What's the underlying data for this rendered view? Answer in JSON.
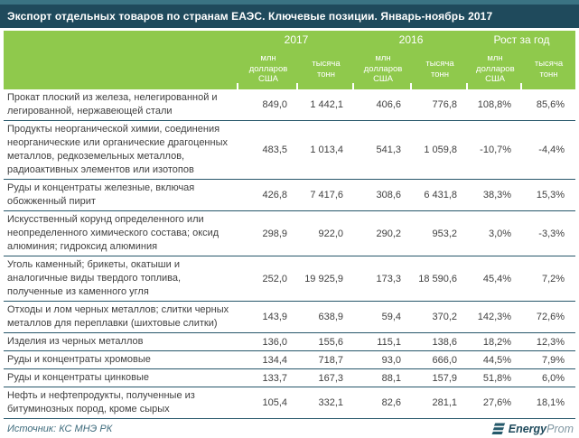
{
  "title": "Экспорт отдельных товаров по странам ЕАЭС. Ключевые позиции. Январь-ноябрь 2017",
  "colors": {
    "title_bar": "#1F4A5C",
    "top_strip": "#3A7383",
    "header_green": "#8FC94C",
    "row_line": "#26566A",
    "body_text": "#3F3F3F",
    "source_text": "#3E6B7C",
    "logo_teal": "#25596B",
    "logo_gray": "#8097A2"
  },
  "chart_data": {
    "type": "table",
    "title": "Экспорт отдельных товаров по странам ЕАЭС. Ключевые позиции. Январь-ноябрь 2017",
    "column_groups": [
      {
        "label": "2017",
        "span": 2
      },
      {
        "label": "2016",
        "span": 2
      },
      {
        "label": "Рост за год",
        "span": 2
      }
    ],
    "columns": [
      "млн долларов США",
      "тысяча тонн",
      "млн долларов США",
      "тысяча тонн",
      "млн долларов США",
      "тысяча тонн"
    ],
    "rows": [
      {
        "name": "Прокат плоский из железа, нелегированной и легированной, нержавеющей стали",
        "values": [
          "849,0",
          "1 442,1",
          "406,6",
          "776,8",
          "108,8%",
          "85,6%"
        ]
      },
      {
        "name": "Продукты неорганической химии, соединения неорганические или органические драгоценных металлов, редкоземельных металлов, радиоактивных элементов или изотопов",
        "values": [
          "483,5",
          "1 013,4",
          "541,3",
          "1 059,8",
          "-10,7%",
          "-4,4%"
        ]
      },
      {
        "name": "Руды и концентраты железные, включая обожженный пирит",
        "values": [
          "426,8",
          "7 417,6",
          "308,6",
          "6 431,8",
          "38,3%",
          "15,3%"
        ]
      },
      {
        "name": "Искусственный корунд определенного или неопределенного химического состава; оксид алюминия; гидроксид алюминия",
        "values": [
          "298,9",
          "922,0",
          "290,2",
          "953,2",
          "3,0%",
          "-3,3%"
        ]
      },
      {
        "name": "Уголь каменный; брикеты, окатыши и аналогичные виды твердого топлива, полученные из каменного угля",
        "values": [
          "252,0",
          "19 925,9",
          "173,3",
          "18 590,6",
          "45,4%",
          "7,2%"
        ]
      },
      {
        "name": "Отходы и лом черных металлов; слитки черных металлов для переплавки (шихтовые слитки)",
        "values": [
          "143,9",
          "638,9",
          "59,4",
          "370,2",
          "142,3%",
          "72,6%"
        ]
      },
      {
        "name": "Изделия из черных металлов",
        "values": [
          "136,0",
          "155,6",
          "115,1",
          "138,6",
          "18,2%",
          "12,3%"
        ]
      },
      {
        "name": "Руды и концентраты хромовые",
        "values": [
          "134,4",
          "718,7",
          "93,0",
          "666,0",
          "44,5%",
          "7,9%"
        ]
      },
      {
        "name": "Руды и концентраты цинковые",
        "values": [
          "133,7",
          "167,3",
          "88,1",
          "157,9",
          "51,8%",
          "6,0%"
        ]
      },
      {
        "name": "Нефть и нефтепродукты, полученные из битуминозных пород, кроме сырых",
        "values": [
          "105,4",
          "332,1",
          "82,6",
          "281,1",
          "27,6%",
          "18,1%"
        ]
      }
    ],
    "source": "Источник: КС МНЭ РК"
  },
  "footer": {
    "source": "Источник: КС МНЭ РК",
    "logo_text_bold": "Energy",
    "logo_text_light": "Prom"
  }
}
